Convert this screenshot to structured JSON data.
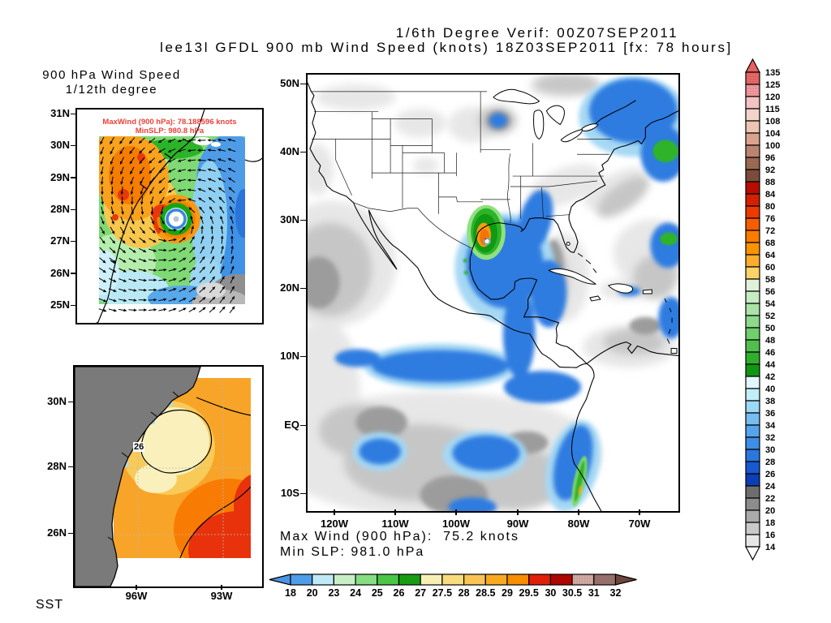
{
  "title": {
    "line1": "1/6th Degree Verif: 00Z07SEP2011",
    "line2": "lee13l GFDL 900 mb Wind Speed (knots) 18Z03SEP2011 [fx: 78 hours]"
  },
  "inset_wind": {
    "title_line1": "900 hPa Wind Speed",
    "title_line2": "1/12th degree",
    "overlay_line1": "MaxWind (900 hPa): 78.188596 knots",
    "overlay_line2": "MinSLP: 980.8 hPa",
    "overlay_color": "#f04038",
    "lat_labels": [
      "31N",
      "30N",
      "29N",
      "28N",
      "27N",
      "26N",
      "25N"
    ]
  },
  "inset_sst": {
    "label": "SST",
    "lat_labels": [
      "30N",
      "28N",
      "26N"
    ],
    "lon_labels": [
      "96W",
      "93W"
    ],
    "contour_label": "26"
  },
  "main_map": {
    "lat_labels": [
      "50N",
      "40N",
      "30N",
      "20N",
      "10N",
      "EQ",
      "10S"
    ],
    "lon_labels": [
      "120W",
      "110W",
      "100W",
      "90W",
      "80W",
      "70W"
    ]
  },
  "footer": {
    "line1": "Max Wind (900 hPa):  75.2 knots",
    "line2": "Min SLP: 981.0 hPa"
  },
  "colorbar_wind": {
    "labels": [
      "135",
      "125",
      "120",
      "115",
      "108",
      "104",
      "100",
      "96",
      "92",
      "88",
      "84",
      "80",
      "76",
      "72",
      "68",
      "64",
      "60",
      "58",
      "56",
      "54",
      "52",
      "50",
      "48",
      "46",
      "44",
      "42",
      "40",
      "38",
      "36",
      "34",
      "32",
      "30",
      "28",
      "26",
      "24",
      "22",
      "20",
      "18",
      "16",
      "14"
    ],
    "top_arrow": "#e86060",
    "bottom_arrow": "#ffffff",
    "segments": [
      "#e86868",
      "#f0989e",
      "#f4c2c2",
      "#f2d4ca",
      "#eec4b4",
      "#daa38e",
      "#bb8472",
      "#9e6b55",
      "#7c4c3a",
      "#b80d00",
      "#d92100",
      "#ec3a00",
      "#f65c00",
      "#fa7b00",
      "#fb9300",
      "#fcad2e",
      "#fdd266",
      "#def2da",
      "#c6ecc2",
      "#aae3a6",
      "#8ed98a",
      "#70ce6c",
      "#50c04c",
      "#30ae2c",
      "#119614",
      "#e2f7fa",
      "#c2eef8",
      "#9cd9f6",
      "#76bdf1",
      "#56a4ec",
      "#3e8ee6",
      "#2a77de",
      "#1859d2",
      "#0c3eb6",
      "#6e6e6e",
      "#8c8c8c",
      "#aaaaaa",
      "#c9c9c9",
      "#e6e6e6"
    ],
    "speckled_indices": [
      0,
      1,
      7,
      10
    ]
  },
  "colorbar_sst": {
    "labels": [
      "18",
      "20",
      "23",
      "24",
      "25",
      "26",
      "27",
      "27.5",
      "28",
      "28.5",
      "29",
      "29.5",
      "30",
      "30.5",
      "31",
      "32"
    ],
    "left_arrow": "#4a94e4",
    "right_arrow": "#6e463c",
    "segments": [
      "#4f9ce8",
      "#bfe9f7",
      "#c9eec6",
      "#86dd82",
      "#4ac546",
      "#189c14",
      "#f7f0b5",
      "#f8dc7e",
      "#f8c456",
      "#f8a922",
      "#f88d00",
      "#e02008",
      "#ae0600",
      "#d2aaa2",
      "#96706a"
    ],
    "speckled_indices": [
      13
    ]
  },
  "chart_data": {
    "type": "heatmap",
    "title": "lee13l GFDL 900 mb Wind Speed (knots) 18Z03SEP2011 [fx: 78 hours]",
    "subtitle": "1/6th Degree Verif: 00Z07SEP2011",
    "panels": [
      {
        "name": "900 hPa Wind Speed 1/12th degree inset",
        "lat_range": [
          "25N",
          "31N"
        ],
        "max_wind_knots": 78.188596,
        "min_slp_hpa": 980.8,
        "description": "hurricane vortex wind field with vectors, eye near 28N off Texas coast"
      },
      {
        "name": "main wind speed map",
        "lat_range": [
          "10S",
          "50N"
        ],
        "lon_range": [
          "120W",
          "70W"
        ],
        "max_wind_knots": 75.2,
        "min_slp_hpa": 981.0,
        "description": "shaded 900 mb wind speed over North/Central America, storm in NW Gulf of Mexico"
      },
      {
        "name": "SST inset",
        "lat_range": [
          "26N",
          "30N"
        ],
        "lon_range": [
          "96W",
          "93W"
        ],
        "contour_label_c": 26,
        "description": "sea surface temperature, NW Gulf of Mexico"
      }
    ],
    "wind_speed_scale_knots": [
      14,
      16,
      18,
      20,
      22,
      24,
      26,
      28,
      30,
      32,
      34,
      36,
      38,
      40,
      42,
      44,
      46,
      48,
      50,
      52,
      54,
      56,
      58,
      60,
      64,
      68,
      72,
      76,
      80,
      84,
      88,
      92,
      96,
      100,
      104,
      108,
      115,
      120,
      125,
      135
    ],
    "sst_scale_celsius": [
      18,
      20,
      23,
      24,
      25,
      26,
      27,
      27.5,
      28,
      28.5,
      29,
      29.5,
      30,
      30.5,
      31,
      32
    ],
    "legend_position": "right and bottom"
  }
}
